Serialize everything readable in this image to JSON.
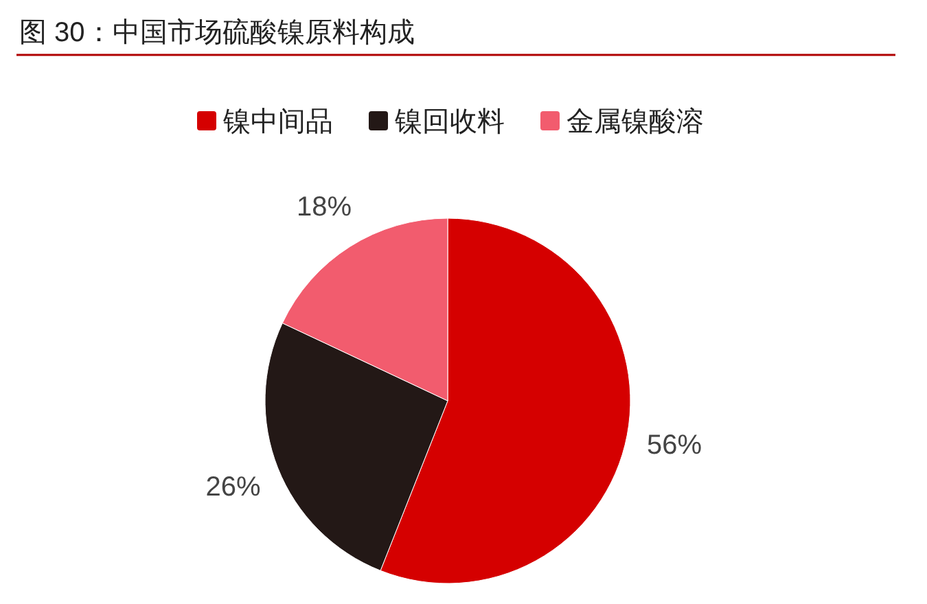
{
  "chart_data": {
    "type": "pie",
    "title": "图 30：中国市场硫酸镍原料构成",
    "categories": [
      "镍中间品",
      "镍回收料",
      "金属镍酸溶"
    ],
    "values": [
      56,
      26,
      18
    ],
    "value_labels": [
      "56%",
      "26%",
      "18%"
    ],
    "colors": [
      "#d50000",
      "#231816",
      "#f25c6e"
    ],
    "legend": "top"
  }
}
